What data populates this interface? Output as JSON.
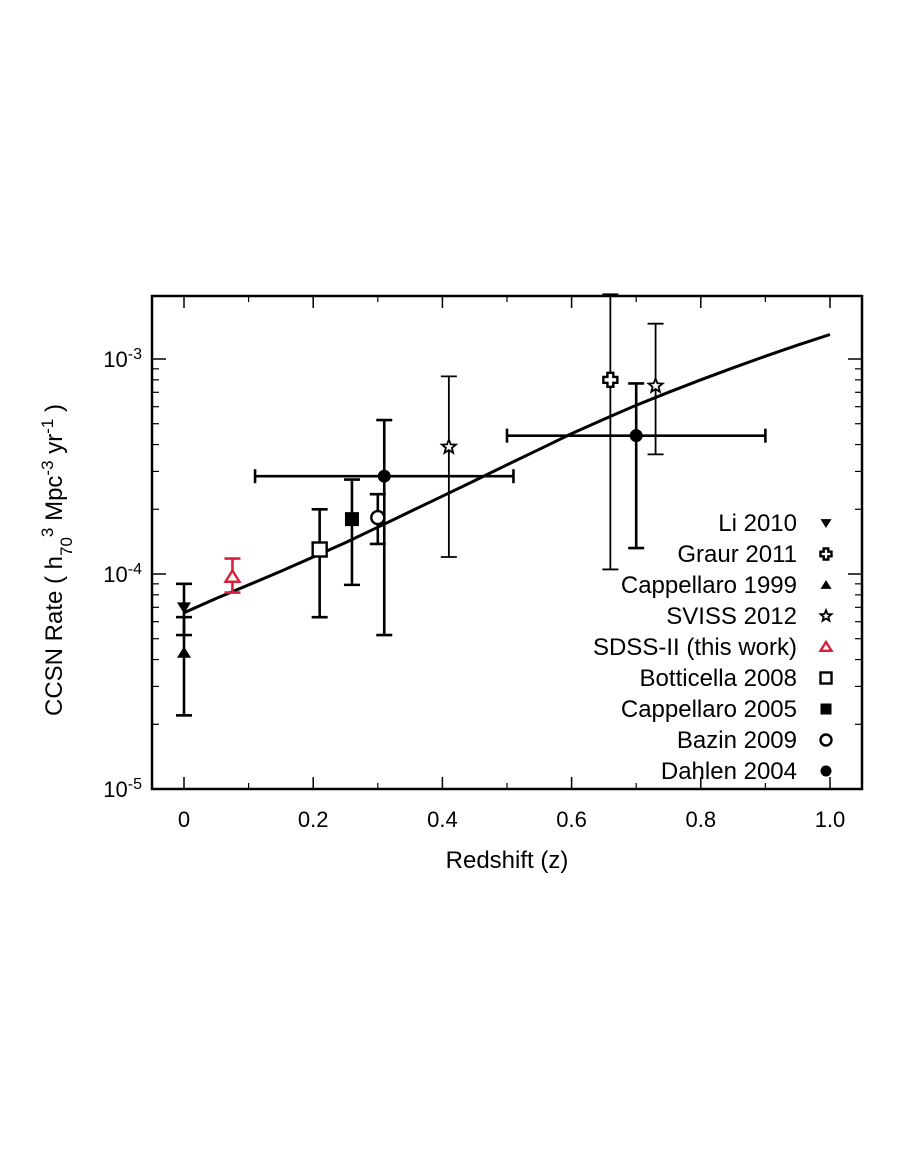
{
  "chart_data": {
    "type": "scatter",
    "title": "",
    "xlabel": "Redshift (z)",
    "ylabel": {
      "prefix": "CCSN Rate ( h",
      "sub": "70",
      "sup1": "3",
      "mid": " Mpc",
      "sup2": "-3",
      "mid2": " yr",
      "sup3": "-1",
      "suffix": " )"
    },
    "xlim": [
      -0.05,
      1.05
    ],
    "ylim": [
      1e-05,
      0.0021
    ],
    "yscale": "log",
    "x_ticks": [
      {
        "value": 0,
        "label": "0"
      },
      {
        "value": 0.2,
        "label": "0.2"
      },
      {
        "value": 0.4,
        "label": "0.4"
      },
      {
        "value": 0.6,
        "label": "0.6"
      },
      {
        "value": 0.8,
        "label": "0.8"
      },
      {
        "value": 1.0,
        "label": "1.0"
      }
    ],
    "y_ticks": [
      {
        "value": 1e-05,
        "base": "10",
        "exp": "-5"
      },
      {
        "value": 0.0001,
        "base": "10",
        "exp": "-4"
      },
      {
        "value": 0.001,
        "base": "10",
        "exp": "-3"
      }
    ],
    "legend_position": "bottom-right",
    "model_curve": {
      "name": "model",
      "x": [
        0,
        0.05,
        0.1,
        0.15,
        0.2,
        0.25,
        0.3,
        0.35,
        0.4,
        0.45,
        0.5,
        0.55,
        0.6,
        0.65,
        0.7,
        0.75,
        0.8,
        0.85,
        0.9,
        0.95,
        1.0
      ],
      "y": [
        6.6e-05,
        7.7e-05,
        8.9e-05,
        0.000103,
        0.00012,
        0.00014,
        0.000165,
        0.000195,
        0.00023,
        0.000272,
        0.000322,
        0.00038,
        0.00045,
        0.000525,
        0.00061,
        0.0007,
        0.0008,
        0.00091,
        0.00103,
        0.00116,
        0.0013
      ]
    },
    "series": [
      {
        "name": "Li 2010",
        "marker": "down-triangle-filled",
        "color": "#000000",
        "points": [
          {
            "x": 0.0,
            "y": 7e-05,
            "ylo": 5.2e-05,
            "yhi": 9e-05
          }
        ]
      },
      {
        "name": "Graur 2011",
        "marker": "cross-open",
        "color": "#000000",
        "points": [
          {
            "x": 0.66,
            "y": 0.0008,
            "ylo": 0.000105,
            "yhi": 0.002
          }
        ]
      },
      {
        "name": "Cappellaro 1999",
        "marker": "up-triangle-filled",
        "color": "#000000",
        "points": [
          {
            "x": 0.0,
            "y": 4.3e-05,
            "ylo": 2.2e-05,
            "yhi": 6.3e-05
          }
        ]
      },
      {
        "name": "SVISS 2012",
        "marker": "star-open",
        "color": "#000000",
        "points": [
          {
            "x": 0.41,
            "y": 0.00039,
            "ylo": 0.00012,
            "yhi": 0.00083
          },
          {
            "x": 0.73,
            "y": 0.00075,
            "ylo": 0.00036,
            "yhi": 0.00146
          }
        ]
      },
      {
        "name": "SDSS-II (this work)",
        "marker": "up-triangle-open",
        "color": "#d8203a",
        "points": [
          {
            "x": 0.075,
            "y": 9.7e-05,
            "ylo": 8.2e-05,
            "yhi": 0.000118
          }
        ]
      },
      {
        "name": "Botticella 2008",
        "marker": "square-open",
        "color": "#000000",
        "points": [
          {
            "x": 0.21,
            "y": 0.00013,
            "ylo": 6.3e-05,
            "yhi": 0.0002
          }
        ]
      },
      {
        "name": "Cappellaro 2005",
        "marker": "square-filled",
        "color": "#000000",
        "points": [
          {
            "x": 0.26,
            "y": 0.00018,
            "ylo": 8.9e-05,
            "yhi": 0.000275
          }
        ]
      },
      {
        "name": "Bazin 2009",
        "marker": "circle-open",
        "color": "#000000",
        "points": [
          {
            "x": 0.3,
            "y": 0.000183,
            "ylo": 0.000138,
            "yhi": 0.000235
          }
        ]
      },
      {
        "name": "Dahlen 2004",
        "marker": "circle-filled",
        "color": "#000000",
        "points": [
          {
            "x": 0.31,
            "y": 0.000285,
            "ylo": 5.2e-05,
            "yhi": 0.00052,
            "xlo": 0.11,
            "xhi": 0.51
          },
          {
            "x": 0.7,
            "y": 0.00044,
            "ylo": 0.000132,
            "yhi": 0.00077,
            "xlo": 0.5,
            "xhi": 0.9
          }
        ]
      }
    ]
  }
}
